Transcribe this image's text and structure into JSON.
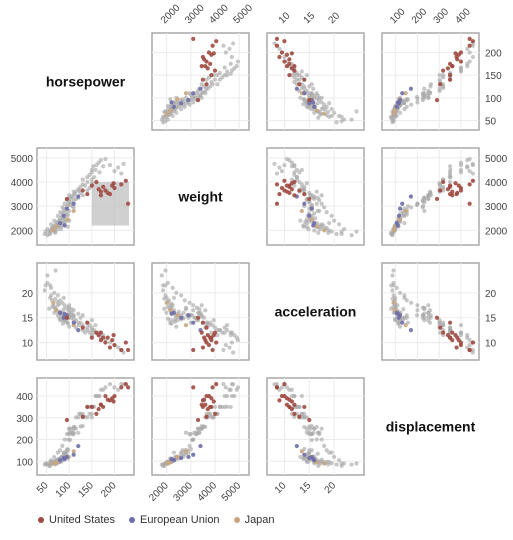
{
  "chart_data": {
    "type": "scatter",
    "variables": [
      "horsepower",
      "weight",
      "acceleration",
      "displacement"
    ],
    "ranges": {
      "horsepower": [
        40,
        232
      ],
      "weight": [
        1600,
        5200
      ],
      "acceleration": [
        7.5,
        25
      ],
      "displacement": [
        60,
        460
      ]
    },
    "ticks": {
      "horsepower": [
        50,
        100,
        150,
        200
      ],
      "weight": [
        2000,
        3000,
        4000,
        5000
      ],
      "acceleration": [
        10,
        15,
        20
      ],
      "displacement": [
        100,
        200,
        300,
        400
      ]
    },
    "grid": true,
    "legend_placement": "bottom-left",
    "selection": {
      "row": "weight",
      "col": "horsepower",
      "x": [
        150,
        232
      ],
      "y": [
        2200,
        4000
      ]
    },
    "series": [
      {
        "name": "United States",
        "color": "#9e4a40",
        "points": [
          [
            150,
            3850,
            11.0,
            350
          ],
          [
            165,
            3700,
            11.5,
            340
          ],
          [
            170,
            3600,
            10.5,
            360
          ],
          [
            175,
            3800,
            11.0,
            350
          ],
          [
            180,
            3650,
            10.0,
            400
          ],
          [
            190,
            3500,
            9.0,
            380
          ],
          [
            198,
            3950,
            11.5,
            375
          ],
          [
            215,
            3900,
            8.5,
            440
          ],
          [
            200,
            3750,
            9.5,
            400
          ],
          [
            160,
            4000,
            12.0,
            318
          ],
          [
            225,
            4050,
            10.0,
            455
          ],
          [
            230,
            3100,
            8.5,
            440
          ],
          [
            95,
            3300,
            15.0,
            290
          ],
          [
            130,
            3650,
            13.0,
            305
          ],
          [
            140,
            3500,
            14.0,
            350
          ],
          [
            185,
            3550,
            11.0,
            383
          ],
          [
            170,
            3450,
            12.0,
            360
          ],
          [
            195,
            3850,
            10.5,
            390
          ]
        ]
      },
      {
        "name": "European Union",
        "color": "#6f6ea8",
        "points": [
          [
            95,
            2900,
            15.5,
            120
          ],
          [
            110,
            3100,
            14.0,
            130
          ],
          [
            80,
            2300,
            16.0,
            105
          ],
          [
            88,
            2600,
            15.0,
            115
          ],
          [
            90,
            2200,
            15.8,
            110
          ],
          [
            120,
            3400,
            12.5,
            170
          ]
        ]
      },
      {
        "name": "Japan",
        "color": "#c9a67e",
        "points": [
          [
            72,
            2150,
            16.5,
            95
          ],
          [
            65,
            2000,
            18.0,
            90
          ],
          [
            97,
            2450,
            15.5,
            120
          ],
          [
            110,
            2800,
            13.5,
            146
          ]
        ]
      },
      {
        "name": "",
        "color": "#a9a9a9",
        "points": [
          [
            46,
            1850,
            20.5,
            85
          ],
          [
            52,
            2050,
            22.0,
            90
          ],
          [
            58,
            2000,
            19.0,
            97
          ],
          [
            60,
            1950,
            19.5,
            91
          ],
          [
            62,
            2100,
            18.5,
            98
          ],
          [
            65,
            2150,
            17.5,
            98
          ],
          [
            67,
            1990,
            16.0,
            91
          ],
          [
            68,
            2200,
            17.0,
            100
          ],
          [
            70,
            2120,
            16.8,
            97
          ],
          [
            71,
            2300,
            16.5,
            105
          ],
          [
            75,
            2250,
            17.5,
            108
          ],
          [
            75,
            2350,
            15.5,
            107
          ],
          [
            76,
            2200,
            16.0,
            98
          ],
          [
            78,
            2400,
            15.0,
            112
          ],
          [
            80,
            2150,
            14.5,
            97
          ],
          [
            80,
            2500,
            16.2,
            113
          ],
          [
            83,
            2450,
            15.7,
            120
          ],
          [
            84,
            2600,
            15.5,
            119
          ],
          [
            85,
            2700,
            16.0,
            122
          ],
          [
            86,
            2300,
            14.5,
            105
          ],
          [
            88,
            2800,
            16.7,
            135
          ],
          [
            88,
            2500,
            15.2,
            119
          ],
          [
            90,
            2900,
            15.0,
            140
          ],
          [
            90,
            2450,
            14.5,
            121
          ],
          [
            92,
            2700,
            14.9,
            134
          ],
          [
            95,
            2850,
            15.5,
            151
          ],
          [
            96,
            3000,
            14.0,
            156
          ],
          [
            97,
            2650,
            15.0,
            151
          ],
          [
            98,
            3100,
            16.5,
            200
          ],
          [
            100,
            3200,
            15.0,
            225
          ],
          [
            100,
            2800,
            17.0,
            232
          ],
          [
            100,
            3300,
            16.0,
            250
          ],
          [
            102,
            3050,
            15.5,
            198
          ],
          [
            105,
            3400,
            16.0,
            250
          ],
          [
            105,
            3350,
            16.7,
            232
          ],
          [
            107,
            3000,
            15.5,
            225
          ],
          [
            110,
            3450,
            15.2,
            250
          ],
          [
            110,
            3250,
            14.5,
            232
          ],
          [
            112,
            3500,
            14.0,
            258
          ],
          [
            115,
            3600,
            13.0,
            302
          ],
          [
            115,
            3300,
            14.5,
            250
          ],
          [
            120,
            3700,
            14.0,
            302
          ],
          [
            122,
            3650,
            13.5,
            318
          ],
          [
            125,
            3800,
            14.0,
            318
          ],
          [
            130,
            3900,
            13.5,
            302
          ],
          [
            130,
            4100,
            12.5,
            318
          ],
          [
            135,
            3850,
            12.0,
            304
          ],
          [
            140,
            4000,
            13.0,
            350
          ],
          [
            140,
            4200,
            12.5,
            350
          ],
          [
            145,
            4300,
            12.0,
            350
          ],
          [
            150,
            4400,
            13.0,
            350
          ],
          [
            150,
            4500,
            12.5,
            351
          ],
          [
            150,
            4100,
            11.5,
            318
          ],
          [
            153,
            4650,
            12.0,
            350
          ],
          [
            155,
            4200,
            12.5,
            351
          ],
          [
            158,
            4500,
            13.5,
            400
          ],
          [
            160,
            4700,
            12.0,
            400
          ],
          [
            165,
            4800,
            11.5,
            400
          ],
          [
            167,
            4400,
            12.0,
            400
          ],
          [
            170,
            4900,
            11.0,
            429
          ],
          [
            175,
            4650,
            11.5,
            429
          ],
          [
            180,
            4950,
            10.5,
            440
          ],
          [
            190,
            4700,
            10.0,
            455
          ],
          [
            200,
            4450,
            9.5,
            440
          ],
          [
            208,
            4600,
            9.0,
            429
          ],
          [
            215,
            4350,
            8.5,
            455
          ],
          [
            220,
            4750,
            8.0,
            454
          ],
          [
            150,
            3950,
            14.5,
            302
          ],
          [
            140,
            3650,
            14.0,
            302
          ],
          [
            145,
            3750,
            13.5,
            318
          ],
          [
            110,
            2950,
            15.5,
            225
          ],
          [
            105,
            3150,
            15.0,
            232
          ],
          [
            88,
            2300,
            19.0,
            140
          ],
          [
            70,
            1950,
            24.5,
            90
          ],
          [
            52,
            1800,
            23.5,
            85
          ],
          [
            48,
            1950,
            21.5,
            90
          ],
          [
            60,
            2250,
            21.0,
            105
          ],
          [
            67,
            2400,
            20.0,
            120
          ],
          [
            75,
            2600,
            19.5,
            140
          ],
          [
            80,
            2750,
            18.5,
            151
          ],
          [
            85,
            2950,
            18.0,
            171
          ],
          [
            90,
            3100,
            17.5,
            200
          ],
          [
            95,
            3250,
            17.0,
            225
          ],
          [
            100,
            3450,
            17.5,
            250
          ],
          [
            110,
            3600,
            16.5,
            258
          ],
          [
            125,
            3550,
            15.0,
            260
          ],
          [
            120,
            3350,
            15.8,
            231
          ],
          [
            130,
            3450,
            15.5,
            262
          ],
          [
            78,
            2200,
            17.8,
            97
          ],
          [
            74,
            2050,
            18.2,
            91
          ],
          [
            69,
            1900,
            18.8,
            86
          ],
          [
            63,
            2050,
            17.2,
            89
          ],
          [
            56,
            1900,
            16.8,
            79
          ],
          [
            58,
            1850,
            21.5,
            79
          ],
          [
            92,
            2350,
            14.2,
            119
          ],
          [
            97,
            2150,
            13.9,
            113
          ],
          [
            100,
            2400,
            13.2,
            120
          ],
          [
            86,
            2200,
            13.8,
            112
          ],
          [
            82,
            2050,
            14.8,
            98
          ],
          [
            94,
            2600,
            14.7,
            134
          ]
        ]
      }
    ]
  },
  "legend": [
    {
      "label": "United States",
      "color": "#9e4a40"
    },
    {
      "label": "European Union",
      "color": "#6f6ea8"
    },
    {
      "label": "Japan",
      "color": "#c9a67e"
    }
  ]
}
